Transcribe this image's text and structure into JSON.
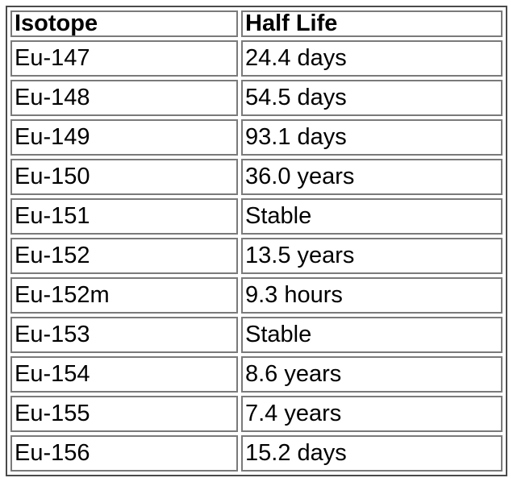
{
  "table": {
    "headers": [
      "Isotope",
      "Half Life"
    ],
    "rows": [
      [
        "Eu-147",
        "24.4 days"
      ],
      [
        "Eu-148",
        "54.5 days"
      ],
      [
        "Eu-149",
        "93.1 days"
      ],
      [
        "Eu-150",
        "36.0 years"
      ],
      [
        "Eu-151",
        "Stable"
      ],
      [
        "Eu-152",
        "13.5 years"
      ],
      [
        "Eu-152m",
        "9.3 hours"
      ],
      [
        "Eu-153",
        "Stable"
      ],
      [
        "Eu-154",
        "8.6 years"
      ],
      [
        "Eu-155",
        "7.4 years"
      ],
      [
        "Eu-156",
        "15.2 days"
      ]
    ]
  }
}
